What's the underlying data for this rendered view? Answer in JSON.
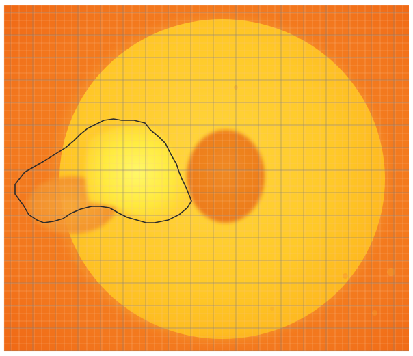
{
  "image": {
    "colors": {
      "background_orange": "#F26A17",
      "outer_orange": "#F47E20",
      "disc_yellow": "#FFC21E",
      "disc_inner_yellow": "#FFD23A",
      "hole_orange": "#EF7E1D",
      "region_bright": "#FFF35A",
      "region_outline": "#2B2B2B",
      "grid_fine": "#F6B98E",
      "grid_major": "#7A7A7A"
    }
  }
}
